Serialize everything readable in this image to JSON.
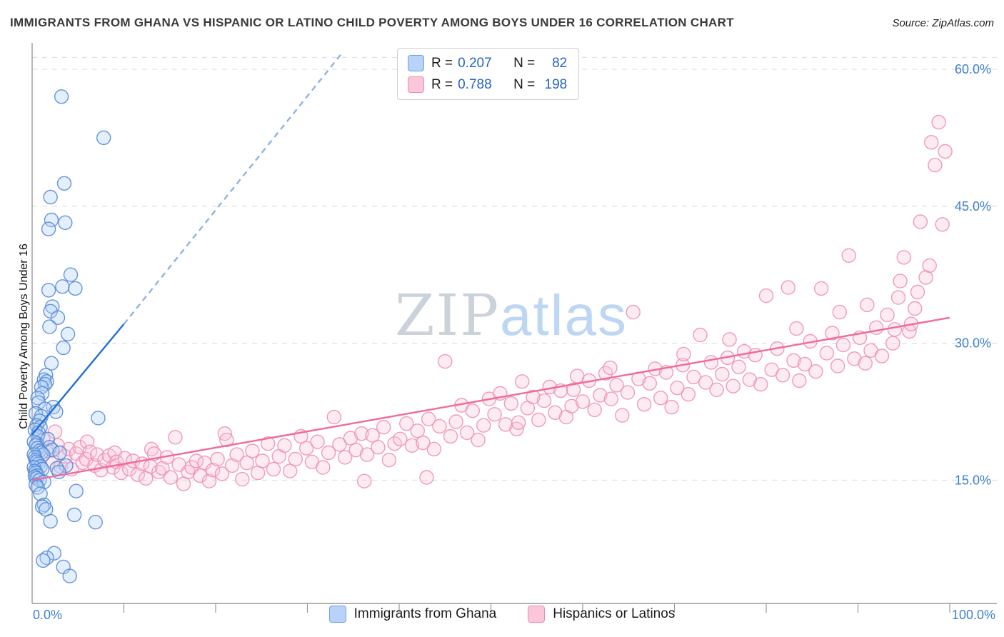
{
  "header": {
    "title": "IMMIGRANTS FROM GHANA VS HISPANIC OR LATINO CHILD POVERTY AMONG BOYS UNDER 16 CORRELATION CHART",
    "source": "Source: ZipAtlas.com"
  },
  "watermark": {
    "zip": "ZIP",
    "atlas": "atlas"
  },
  "stats_legend": {
    "rows": [
      {
        "r_label": "R =",
        "r_value": "0.207",
        "n_label": "N =",
        "n_value": "82",
        "fill": "#b8d2f8",
        "stroke": "#6f9ef0"
      },
      {
        "r_label": "R =",
        "r_value": "0.788",
        "n_label": "N =",
        "n_value": "198",
        "fill": "#f9c6da",
        "stroke": "#f08ab0"
      }
    ]
  },
  "axes": {
    "x_left": "0.0%",
    "x_right": "100.0%"
  },
  "bottom_legend": {
    "items": [
      {
        "label": "Immigrants from Ghana",
        "fill": "#b8d2f8",
        "stroke": "#6f9ef0"
      },
      {
        "label": "Hispanics or Latinos",
        "fill": "#f9c6da",
        "stroke": "#f08ab0"
      }
    ]
  },
  "chart_data": {
    "type": "scatter",
    "title": "IMMIGRANTS FROM GHANA VS HISPANIC OR LATINO CHILD POVERTY AMONG BOYS UNDER 16 CORRELATION CHART",
    "xlabel": "",
    "ylabel": "Child Poverty Among Boys Under 16",
    "xlim": [
      0,
      100
    ],
    "ylim": [
      1.5,
      62.5
    ],
    "grid": "dashed-horizontal",
    "legend_position": "top-center",
    "top_border_value": 61.3,
    "x_minor_ticks": [
      10,
      20,
      30,
      40,
      50,
      60,
      70,
      80,
      90,
      100
    ],
    "y_ticks": [
      {
        "value": 15,
        "label": "15.0%"
      },
      {
        "value": 30,
        "label": "30.0%"
      },
      {
        "value": 45,
        "label": "45.0%"
      },
      {
        "value": 60,
        "label": "60.0%"
      }
    ],
    "series": [
      {
        "name": "Immigrants from Ghana",
        "R": 0.207,
        "N": 82,
        "fill": "#b3d0f7",
        "stroke": "#5588d8",
        "points": [
          [
            3.2,
            57.0
          ],
          [
            7.8,
            52.5
          ],
          [
            3.5,
            47.5
          ],
          [
            2.0,
            46.0
          ],
          [
            2.1,
            43.5
          ],
          [
            3.6,
            43.2
          ],
          [
            1.8,
            42.5
          ],
          [
            4.2,
            37.5
          ],
          [
            3.3,
            36.2
          ],
          [
            4.7,
            36.0
          ],
          [
            1.8,
            35.8
          ],
          [
            2.2,
            34.0
          ],
          [
            2.0,
            33.5
          ],
          [
            2.8,
            32.8
          ],
          [
            1.9,
            31.8
          ],
          [
            3.9,
            31.0
          ],
          [
            3.4,
            29.5
          ],
          [
            2.1,
            27.8
          ],
          [
            1.5,
            26.5
          ],
          [
            1.3,
            26.0
          ],
          [
            1.6,
            25.8
          ],
          [
            1.4,
            25.5
          ],
          [
            1.0,
            25.2
          ],
          [
            1.1,
            24.5
          ],
          [
            0.6,
            24.0
          ],
          [
            0.7,
            23.5
          ],
          [
            2.3,
            23.0
          ],
          [
            1.4,
            22.8
          ],
          [
            2.6,
            22.5
          ],
          [
            0.4,
            22.3
          ],
          [
            7.2,
            21.8
          ],
          [
            1.0,
            22.0
          ],
          [
            0.8,
            21.5
          ],
          [
            0.5,
            21.0
          ],
          [
            0.9,
            20.8
          ],
          [
            0.3,
            20.5
          ],
          [
            0.7,
            20.2
          ],
          [
            0.6,
            19.8
          ],
          [
            1.7,
            19.5
          ],
          [
            0.5,
            19.0
          ],
          [
            0.2,
            19.2
          ],
          [
            0.4,
            18.8
          ],
          [
            1.9,
            18.6
          ],
          [
            0.6,
            18.5
          ],
          [
            2.2,
            18.3
          ],
          [
            0.8,
            18.2
          ],
          [
            1.0,
            18.0
          ],
          [
            3.0,
            18.0
          ],
          [
            1.2,
            17.8
          ],
          [
            0.2,
            17.8
          ],
          [
            0.3,
            17.5
          ],
          [
            0.4,
            17.2
          ],
          [
            0.5,
            17.0
          ],
          [
            0.7,
            16.8
          ],
          [
            3.7,
            16.6
          ],
          [
            0.9,
            16.5
          ],
          [
            0.2,
            16.4
          ],
          [
            2.7,
            16.3
          ],
          [
            1.1,
            16.2
          ],
          [
            0.3,
            16.0
          ],
          [
            2.9,
            15.9
          ],
          [
            0.4,
            15.8
          ],
          [
            0.6,
            15.5
          ],
          [
            0.3,
            15.4
          ],
          [
            0.5,
            15.2
          ],
          [
            0.8,
            15.0
          ],
          [
            1.3,
            14.8
          ],
          [
            0.4,
            14.5
          ],
          [
            0.6,
            14.2
          ],
          [
            4.8,
            13.8
          ],
          [
            0.9,
            13.5
          ],
          [
            1.3,
            12.3
          ],
          [
            1.1,
            12.1
          ],
          [
            1.5,
            11.8
          ],
          [
            4.6,
            11.2
          ],
          [
            2.0,
            10.5
          ],
          [
            6.9,
            10.4
          ],
          [
            2.4,
            7.0
          ],
          [
            1.6,
            6.5
          ],
          [
            1.2,
            6.2
          ],
          [
            3.4,
            5.5
          ],
          [
            4.1,
            4.5
          ]
        ]
      },
      {
        "name": "Hispanics or Latinos",
        "R": 0.788,
        "N": 198,
        "fill": "#fac5d9",
        "stroke": "#ef8fb4",
        "points": [
          [
            1.2,
            19.5
          ],
          [
            1.8,
            18.2
          ],
          [
            2.3,
            17.0
          ],
          [
            2.5,
            20.3
          ],
          [
            2.8,
            18.8
          ],
          [
            3.1,
            16.5
          ],
          [
            3.6,
            17.6
          ],
          [
            4.0,
            18.4
          ],
          [
            4.3,
            16.2
          ],
          [
            4.8,
            17.9
          ],
          [
            5.2,
            18.6
          ],
          [
            5.5,
            16.9
          ],
          [
            5.9,
            17.3
          ],
          [
            6.0,
            19.2
          ],
          [
            6.3,
            18.1
          ],
          [
            6.8,
            16.6
          ],
          [
            7.1,
            17.8
          ],
          [
            7.5,
            16.1
          ],
          [
            7.9,
            17.2
          ],
          [
            8.4,
            17.7
          ],
          [
            8.8,
            16.4
          ],
          [
            9.0,
            18.0
          ],
          [
            9.2,
            17.0
          ],
          [
            9.7,
            15.8
          ],
          [
            10.1,
            17.4
          ],
          [
            10.6,
            16.2
          ],
          [
            11.0,
            17.1
          ],
          [
            11.5,
            15.6
          ],
          [
            12.0,
            16.8
          ],
          [
            12.4,
            15.2
          ],
          [
            12.9,
            16.5
          ],
          [
            13.0,
            18.4
          ],
          [
            13.3,
            17.9
          ],
          [
            13.8,
            15.9
          ],
          [
            14.2,
            16.3
          ],
          [
            14.7,
            17.5
          ],
          [
            15.1,
            15.3
          ],
          [
            15.6,
            19.7
          ],
          [
            16.0,
            16.7
          ],
          [
            16.5,
            14.6
          ],
          [
            17.0,
            15.9
          ],
          [
            17.4,
            16.4
          ],
          [
            17.9,
            17.1
          ],
          [
            18.3,
            15.5
          ],
          [
            18.8,
            16.9
          ],
          [
            19.3,
            14.9
          ],
          [
            19.7,
            16.1
          ],
          [
            20.2,
            17.3
          ],
          [
            20.7,
            15.7
          ],
          [
            21.0,
            20.1
          ],
          [
            21.2,
            19.4
          ],
          [
            21.8,
            16.6
          ],
          [
            22.3,
            17.8
          ],
          [
            22.9,
            15.1
          ],
          [
            23.4,
            16.9
          ],
          [
            24.0,
            18.2
          ],
          [
            24.6,
            15.8
          ],
          [
            25.1,
            17.1
          ],
          [
            25.7,
            19.0
          ],
          [
            26.3,
            16.2
          ],
          [
            26.9,
            17.6
          ],
          [
            27.5,
            18.8
          ],
          [
            28.1,
            16.0
          ],
          [
            28.7,
            17.3
          ],
          [
            29.3,
            19.8
          ],
          [
            29.9,
            18.5
          ],
          [
            30.5,
            17.0
          ],
          [
            31.1,
            19.2
          ],
          [
            31.7,
            16.4
          ],
          [
            32.3,
            18.0
          ],
          [
            32.9,
            21.9
          ],
          [
            33.5,
            18.9
          ],
          [
            34.1,
            17.5
          ],
          [
            34.7,
            19.6
          ],
          [
            35.3,
            18.3
          ],
          [
            35.9,
            20.1
          ],
          [
            36.2,
            14.9
          ],
          [
            36.5,
            17.8
          ],
          [
            37.1,
            19.9
          ],
          [
            37.7,
            18.6
          ],
          [
            38.3,
            20.8
          ],
          [
            38.9,
            17.2
          ],
          [
            39.5,
            19.0
          ],
          [
            40.1,
            19.5
          ],
          [
            40.8,
            21.2
          ],
          [
            41.4,
            18.8
          ],
          [
            42.0,
            20.4
          ],
          [
            42.6,
            19.1
          ],
          [
            43.0,
            15.3
          ],
          [
            43.2,
            21.7
          ],
          [
            43.8,
            18.4
          ],
          [
            44.4,
            20.9
          ],
          [
            45.0,
            28.0
          ],
          [
            45.6,
            19.8
          ],
          [
            46.2,
            21.4
          ],
          [
            46.8,
            23.2
          ],
          [
            47.4,
            20.2
          ],
          [
            48.0,
            22.6
          ],
          [
            48.6,
            19.4
          ],
          [
            49.2,
            21.0
          ],
          [
            49.8,
            23.9
          ],
          [
            50.4,
            22.2
          ],
          [
            51.0,
            24.5
          ],
          [
            51.6,
            21.1
          ],
          [
            52.2,
            23.4
          ],
          [
            52.8,
            20.6
          ],
          [
            53.0,
            21.3
          ],
          [
            53.4,
            25.8
          ],
          [
            54.0,
            22.9
          ],
          [
            54.6,
            24.1
          ],
          [
            55.2,
            21.6
          ],
          [
            55.8,
            23.7
          ],
          [
            56.4,
            25.2
          ],
          [
            57.0,
            22.4
          ],
          [
            57.6,
            24.8
          ],
          [
            58.2,
            21.9
          ],
          [
            58.8,
            23.1
          ],
          [
            59.0,
            24.9
          ],
          [
            59.4,
            26.4
          ],
          [
            60.0,
            23.6
          ],
          [
            60.7,
            25.9
          ],
          [
            61.3,
            22.7
          ],
          [
            61.9,
            24.3
          ],
          [
            62.5,
            26.7
          ],
          [
            63.0,
            27.3
          ],
          [
            63.1,
            23.9
          ],
          [
            63.7,
            25.4
          ],
          [
            64.3,
            22.1
          ],
          [
            64.9,
            24.6
          ],
          [
            65.5,
            33.4
          ],
          [
            66.1,
            26.1
          ],
          [
            66.7,
            23.3
          ],
          [
            67.3,
            25.6
          ],
          [
            67.9,
            27.2
          ],
          [
            68.5,
            24.0
          ],
          [
            69.1,
            26.8
          ],
          [
            69.7,
            23.0
          ],
          [
            70.3,
            25.1
          ],
          [
            70.9,
            27.6
          ],
          [
            71.0,
            28.8
          ],
          [
            71.5,
            24.4
          ],
          [
            72.1,
            26.3
          ],
          [
            72.8,
            30.9
          ],
          [
            73.4,
            25.7
          ],
          [
            74.0,
            27.9
          ],
          [
            74.6,
            24.9
          ],
          [
            75.2,
            26.6
          ],
          [
            75.8,
            28.4
          ],
          [
            76.0,
            30.4
          ],
          [
            76.4,
            25.3
          ],
          [
            77.0,
            27.4
          ],
          [
            77.6,
            29.1
          ],
          [
            78.2,
            26.0
          ],
          [
            78.8,
            28.7
          ],
          [
            79.4,
            25.5
          ],
          [
            80.0,
            35.2
          ],
          [
            80.6,
            27.1
          ],
          [
            81.2,
            29.4
          ],
          [
            81.8,
            26.5
          ],
          [
            82.4,
            36.1
          ],
          [
            83.0,
            28.1
          ],
          [
            83.3,
            31.6
          ],
          [
            83.6,
            25.9
          ],
          [
            84.2,
            27.7
          ],
          [
            84.8,
            30.2
          ],
          [
            85.4,
            26.9
          ],
          [
            86.0,
            36.0
          ],
          [
            86.6,
            28.9
          ],
          [
            87.2,
            31.1
          ],
          [
            87.8,
            27.5
          ],
          [
            88.0,
            33.4
          ],
          [
            88.4,
            29.8
          ],
          [
            89.0,
            39.6
          ],
          [
            89.6,
            28.3
          ],
          [
            90.2,
            30.6
          ],
          [
            90.8,
            27.8
          ],
          [
            91.0,
            34.2
          ],
          [
            91.4,
            29.2
          ],
          [
            92.0,
            31.7
          ],
          [
            92.6,
            28.6
          ],
          [
            93.2,
            33.1
          ],
          [
            93.8,
            30.0
          ],
          [
            94.0,
            31.5
          ],
          [
            94.4,
            35.0
          ],
          [
            94.6,
            36.8
          ],
          [
            95.0,
            39.4
          ],
          [
            95.6,
            31.3
          ],
          [
            95.8,
            32.1
          ],
          [
            96.2,
            33.8
          ],
          [
            96.5,
            35.6
          ],
          [
            96.8,
            43.3
          ],
          [
            97.4,
            37.2
          ],
          [
            97.8,
            38.5
          ],
          [
            98.0,
            52.0
          ],
          [
            98.4,
            49.5
          ],
          [
            98.8,
            54.2
          ],
          [
            99.2,
            43.0
          ],
          [
            99.5,
            51.0
          ]
        ]
      }
    ],
    "trend_lines": [
      {
        "series": "Immigrants from Ghana",
        "style": "solid",
        "color": "#1f6fd6",
        "x1": 0,
        "y1": 20.0,
        "x2": 10,
        "y2": 32.1
      },
      {
        "series": "Immigrants from Ghana",
        "style": "dashed",
        "color": "#8fb2e4",
        "x1": 10,
        "y1": 32.1,
        "x2": 33.8,
        "y2": 61.8
      },
      {
        "series": "Hispanics or Latinos",
        "style": "solid",
        "color": "#ef6a9b",
        "x1": 0,
        "y1": 15.0,
        "x2": 100,
        "y2": 32.8
      }
    ]
  }
}
